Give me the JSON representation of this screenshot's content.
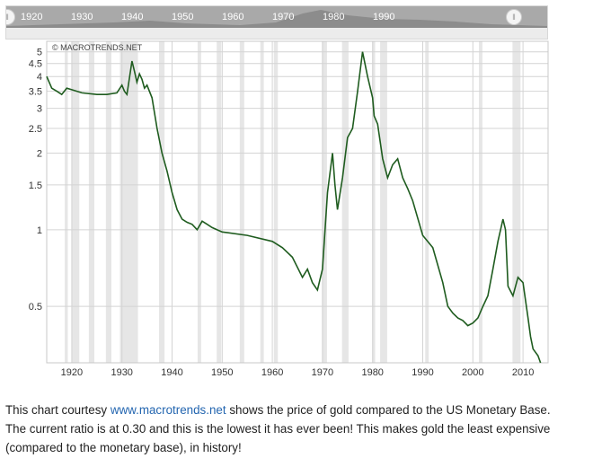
{
  "navigator": {
    "labels": [
      "1920",
      "1930",
      "1940",
      "1950",
      "1960",
      "1970",
      "1980",
      "1990"
    ]
  },
  "watermark": "© MACROTRENDS.NET",
  "chart_data": {
    "type": "line",
    "title": "",
    "xlabel": "",
    "ylabel": "",
    "y_scale": "log",
    "xlim": [
      1915,
      2015
    ],
    "ylim": [
      0.3,
      5.5
    ],
    "x_ticks": [
      "1920",
      "1930",
      "1940",
      "1950",
      "1960",
      "1970",
      "1980",
      "1990",
      "2000",
      "2010"
    ],
    "y_ticks": [
      "0.5",
      "1",
      "1.5",
      "2",
      "2.5",
      "3",
      "3.5",
      "4",
      "4.5",
      "5"
    ],
    "grid": true,
    "recession_shading": true,
    "line_color": "#1f5c1f",
    "series": [
      {
        "x": [
          1915,
          1916,
          1917,
          1918,
          1919,
          1920,
          1922,
          1925,
          1927,
          1929,
          1930,
          1930.5,
          1931,
          1932,
          1932.5,
          1933,
          1933.5,
          1934,
          1934.5,
          1935,
          1936,
          1937,
          1938,
          1939,
          1940,
          1941,
          1942,
          1943,
          1944,
          1945,
          1946,
          1947,
          1948,
          1950,
          1955,
          1960,
          1962,
          1964,
          1966,
          1967,
          1968,
          1969,
          1970,
          1971,
          1972,
          1972.5,
          1973,
          1974,
          1975,
          1976,
          1977,
          1978,
          1979,
          1980,
          1980.3,
          1981,
          1982,
          1983,
          1984,
          1985,
          1986,
          1987,
          1988,
          1990,
          1992,
          1994,
          1995,
          1996,
          1997,
          1998,
          1999,
          2000,
          2001,
          2002,
          2003,
          2004,
          2005,
          2006,
          2006.5,
          2007,
          2008,
          2009,
          2010,
          2011,
          2011.5,
          2012,
          2013,
          2013.5
        ],
        "y": [
          4.0,
          3.6,
          3.5,
          3.4,
          3.6,
          3.55,
          3.45,
          3.4,
          3.4,
          3.45,
          3.7,
          3.5,
          3.4,
          4.6,
          4.2,
          3.8,
          4.1,
          3.9,
          3.6,
          3.7,
          3.3,
          2.5,
          2.0,
          1.7,
          1.4,
          1.2,
          1.1,
          1.07,
          1.05,
          1.0,
          1.08,
          1.05,
          1.02,
          0.98,
          0.95,
          0.9,
          0.85,
          0.78,
          0.65,
          0.7,
          0.62,
          0.58,
          0.7,
          1.4,
          2.0,
          1.5,
          1.2,
          1.6,
          2.3,
          2.5,
          3.5,
          5.0,
          4.0,
          3.3,
          2.8,
          2.6,
          1.9,
          1.6,
          1.8,
          1.9,
          1.6,
          1.45,
          1.3,
          0.95,
          0.85,
          0.62,
          0.5,
          0.47,
          0.45,
          0.44,
          0.42,
          0.43,
          0.45,
          0.5,
          0.55,
          0.7,
          0.9,
          1.1,
          1.0,
          0.6,
          0.55,
          0.65,
          0.62,
          0.45,
          0.38,
          0.34,
          0.32,
          0.3
        ]
      }
    ],
    "recessions": [
      [
        1918.6,
        1919.2
      ],
      [
        1920.0,
        1921.5
      ],
      [
        1923.4,
        1924.5
      ],
      [
        1926.8,
        1927.9
      ],
      [
        1929.6,
        1933.2
      ],
      [
        1937.4,
        1938.5
      ],
      [
        1945.1,
        1945.8
      ],
      [
        1948.9,
        1949.8
      ],
      [
        1953.5,
        1954.4
      ],
      [
        1957.6,
        1958.3
      ],
      [
        1960.3,
        1961.1
      ],
      [
        1969.9,
        1970.9
      ],
      [
        1973.9,
        1975.2
      ],
      [
        1980.0,
        1980.5
      ],
      [
        1981.5,
        1982.9
      ],
      [
        1990.5,
        1991.2
      ],
      [
        2001.2,
        2001.9
      ],
      [
        2007.9,
        2009.5
      ]
    ]
  },
  "caption": {
    "line1_prefix": "This chart courtesy ",
    "link": "www.macrotrends.net",
    "line1_suffix": " shows the price of gold compared to the US Monetary Base.",
    "line2": "The current ratio is at 0.30 and this is the lowest it has ever been!  This makes gold the least expensive",
    "line3": "(compared to the monetary base), in history!"
  }
}
